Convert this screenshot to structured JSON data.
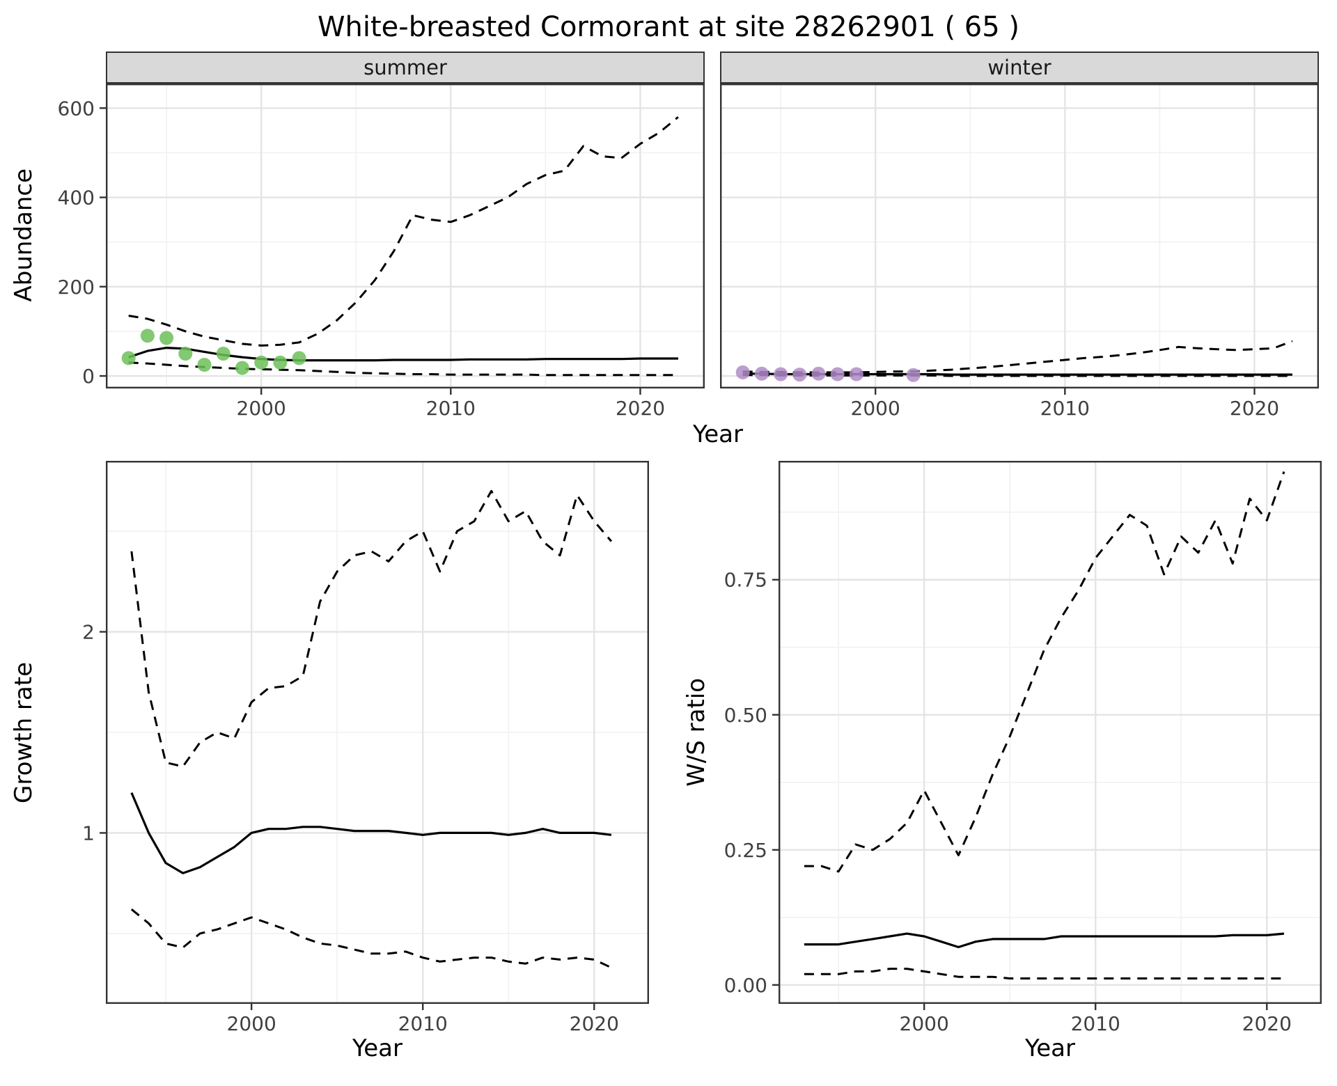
{
  "title": "White-breasted Cormorant at site 28262901 ( 65 )",
  "colors": {
    "summer_points": "#6cbf59",
    "winter_points": "#b08cc7",
    "line": "#000000",
    "strip_bg": "#d9d9d9",
    "panel_border": "#333333"
  },
  "chart_data": [
    {
      "id": "abundance",
      "type": "line",
      "ylabel": "Abundance",
      "xlabel": "Year",
      "xlim": [
        1991.8,
        2023.4
      ],
      "ylim": [
        -28,
        655
      ],
      "xticks": [
        2000,
        2010,
        2020
      ],
      "xtick_labels": [
        "2000",
        "2010",
        "2020"
      ],
      "yticks": [
        0,
        200,
        400,
        600
      ],
      "ytick_labels": [
        "0",
        "200",
        "400",
        "600"
      ],
      "grid": true,
      "x": [
        1993,
        1994,
        1995,
        1996,
        1997,
        1998,
        1999,
        2000,
        2001,
        2002,
        2003,
        2004,
        2005,
        2006,
        2007,
        2008,
        2009,
        2010,
        2011,
        2012,
        2013,
        2014,
        2015,
        2016,
        2017,
        2018,
        2019,
        2020,
        2021,
        2022
      ],
      "facets": [
        {
          "label": "summer",
          "point_color": "#6cbf59",
          "observed": {
            "x": [
              1993,
              1994,
              1995,
              1996,
              1997,
              1998,
              1999,
              2000,
              2001,
              2002
            ],
            "y": [
              40,
              90,
              85,
              50,
              25,
              50,
              18,
              30,
              30,
              40
            ]
          },
          "series": [
            {
              "name": "median",
              "style": "solid",
              "values": [
                42,
                56,
                63,
                61,
                54,
                47,
                42,
                38,
                36,
                35,
                35,
                35,
                35,
                35,
                36,
                36,
                36,
                36,
                37,
                37,
                37,
                37,
                38,
                38,
                38,
                38,
                38,
                39,
                39,
                39
              ]
            },
            {
              "name": "upper_ci",
              "style": "dashed",
              "values": [
                135,
                128,
                115,
                100,
                88,
                80,
                72,
                68,
                70,
                75,
                95,
                125,
                165,
                215,
                280,
                360,
                350,
                345,
                360,
                380,
                400,
                430,
                450,
                460,
                515,
                492,
                488,
                520,
                545,
                580
              ]
            },
            {
              "name": "lower_ci",
              "style": "dashed",
              "values": [
                30,
                28,
                25,
                22,
                20,
                18,
                16,
                15,
                14,
                13,
                11,
                9,
                7,
                6,
                5,
                4,
                4,
                3,
                3,
                3,
                3,
                3,
                2,
                2,
                2,
                2,
                2,
                2,
                2,
                2
              ]
            }
          ]
        },
        {
          "label": "winter",
          "point_color": "#b08cc7",
          "observed": {
            "x": [
              1993,
              1994,
              1995,
              1996,
              1997,
              1998,
              1999,
              2002
            ],
            "y": [
              8,
              5,
              4,
              3,
              5,
              4,
              4,
              2
            ]
          },
          "series": [
            {
              "name": "median",
              "style": "solid",
              "values": [
                5,
                5,
                4,
                4,
                4,
                4,
                4,
                4,
                4,
                4,
                4,
                3,
                3,
                3,
                3,
                3,
                3,
                3,
                3,
                3,
                3,
                3,
                3,
                3,
                3,
                3,
                3,
                3,
                3,
                3
              ]
            },
            {
              "name": "upper_ci",
              "style": "dashed",
              "values": [
                10,
                9,
                9,
                8,
                8,
                8,
                8,
                9,
                10,
                10,
                12,
                14,
                17,
                20,
                24,
                28,
                32,
                36,
                40,
                43,
                47,
                52,
                58,
                65,
                62,
                60,
                58,
                60,
                62,
                78
              ]
            },
            {
              "name": "lower_ci",
              "style": "dashed",
              "values": [
                2,
                2,
                1,
                1,
                1,
                1,
                1,
                1,
                1,
                1,
                1,
                0,
                0,
                0,
                0,
                0,
                0,
                0,
                0,
                0,
                0,
                0,
                0,
                0,
                0,
                0,
                0,
                0,
                0,
                0
              ]
            }
          ]
        }
      ]
    },
    {
      "id": "growth_rate",
      "type": "line",
      "ylabel": "Growth rate",
      "xlabel": "Year",
      "xlim": [
        1991.5,
        2023.2
      ],
      "ylim": [
        0.15,
        2.85
      ],
      "xticks": [
        2000,
        2010,
        2020
      ],
      "xtick_labels": [
        "2000",
        "2010",
        "2020"
      ],
      "yticks": [
        1,
        2
      ],
      "ytick_labels": [
        "1",
        "2"
      ],
      "grid": true,
      "x": [
        1993,
        1994,
        1995,
        1996,
        1997,
        1998,
        1999,
        2000,
        2001,
        2002,
        2003,
        2004,
        2005,
        2006,
        2007,
        2008,
        2009,
        2010,
        2011,
        2012,
        2013,
        2014,
        2015,
        2016,
        2017,
        2018,
        2019,
        2020,
        2021
      ],
      "series": [
        {
          "name": "median",
          "style": "solid",
          "values": [
            1.2,
            1.0,
            0.85,
            0.8,
            0.83,
            0.88,
            0.93,
            1.0,
            1.02,
            1.02,
            1.03,
            1.03,
            1.02,
            1.01,
            1.01,
            1.01,
            1.0,
            0.99,
            1.0,
            1.0,
            1.0,
            1.0,
            0.99,
            1.0,
            1.02,
            1.0,
            1.0,
            1.0,
            0.99
          ]
        },
        {
          "name": "upper_ci",
          "style": "dashed",
          "values": [
            2.4,
            1.7,
            1.35,
            1.33,
            1.45,
            1.5,
            1.47,
            1.65,
            1.72,
            1.73,
            1.78,
            2.15,
            2.3,
            2.38,
            2.4,
            2.35,
            2.45,
            2.5,
            2.3,
            2.5,
            2.55,
            2.7,
            2.55,
            2.6,
            2.45,
            2.38,
            2.68,
            2.55,
            2.45
          ]
        },
        {
          "name": "lower_ci",
          "style": "dashed",
          "values": [
            0.62,
            0.55,
            0.45,
            0.43,
            0.5,
            0.52,
            0.55,
            0.58,
            0.55,
            0.52,
            0.48,
            0.45,
            0.44,
            0.42,
            0.4,
            0.4,
            0.41,
            0.38,
            0.36,
            0.37,
            0.38,
            0.38,
            0.36,
            0.35,
            0.38,
            0.37,
            0.38,
            0.37,
            0.33
          ]
        }
      ]
    },
    {
      "id": "ws_ratio",
      "type": "line",
      "ylabel": "W/S ratio",
      "xlabel": "Year",
      "xlim": [
        1991.5,
        2023.2
      ],
      "ylim": [
        -0.035,
        0.97
      ],
      "xticks": [
        2000,
        2010,
        2020
      ],
      "xtick_labels": [
        "2000",
        "2010",
        "2020"
      ],
      "yticks": [
        0,
        0.25,
        0.5,
        0.75
      ],
      "ytick_labels": [
        "0.00",
        "0.25",
        "0.50",
        "0.75"
      ],
      "grid": true,
      "x": [
        1993,
        1994,
        1995,
        1996,
        1997,
        1998,
        1999,
        2000,
        2001,
        2002,
        2003,
        2004,
        2005,
        2006,
        2007,
        2008,
        2009,
        2010,
        2011,
        2012,
        2013,
        2014,
        2015,
        2016,
        2017,
        2018,
        2019,
        2020,
        2021
      ],
      "series": [
        {
          "name": "median",
          "style": "solid",
          "values": [
            0.075,
            0.075,
            0.075,
            0.08,
            0.085,
            0.09,
            0.095,
            0.09,
            0.08,
            0.07,
            0.08,
            0.085,
            0.085,
            0.085,
            0.085,
            0.09,
            0.09,
            0.09,
            0.09,
            0.09,
            0.09,
            0.09,
            0.09,
            0.09,
            0.09,
            0.092,
            0.092,
            0.092,
            0.095
          ]
        },
        {
          "name": "upper_ci",
          "style": "dashed",
          "values": [
            0.22,
            0.22,
            0.21,
            0.26,
            0.25,
            0.27,
            0.3,
            0.36,
            0.3,
            0.24,
            0.31,
            0.39,
            0.46,
            0.54,
            0.62,
            0.68,
            0.73,
            0.79,
            0.83,
            0.87,
            0.85,
            0.76,
            0.83,
            0.8,
            0.86,
            0.78,
            0.9,
            0.86,
            0.95
          ]
        },
        {
          "name": "lower_ci",
          "style": "dashed",
          "values": [
            0.02,
            0.02,
            0.02,
            0.025,
            0.025,
            0.03,
            0.03,
            0.025,
            0.02,
            0.015,
            0.015,
            0.015,
            0.012,
            0.012,
            0.012,
            0.012,
            0.012,
            0.012,
            0.012,
            0.012,
            0.012,
            0.012,
            0.012,
            0.012,
            0.012,
            0.012,
            0.012,
            0.012,
            0.012
          ]
        }
      ]
    }
  ]
}
